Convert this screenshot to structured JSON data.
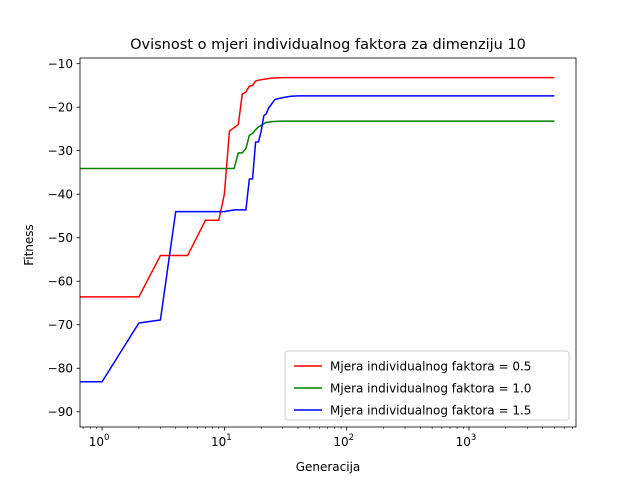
{
  "chart_data": {
    "type": "line",
    "title": "Ovisnost o mjeri individualnog faktora za dimenziju 10",
    "xlabel": "Generacija",
    "ylabel": "Fitness",
    "xscale": "log",
    "xlim": [
      0.66,
      7500
    ],
    "ylim": [
      -93.5,
      -8.7
    ],
    "xticks": [
      {
        "value": 1,
        "base": "10",
        "exp": "0"
      },
      {
        "value": 10,
        "base": "10",
        "exp": "1"
      },
      {
        "value": 100,
        "base": "10",
        "exp": "2"
      },
      {
        "value": 1000,
        "base": "10",
        "exp": "3"
      }
    ],
    "yticks": [
      {
        "value": -10,
        "label": "−10"
      },
      {
        "value": -20,
        "label": "−20"
      },
      {
        "value": -30,
        "label": "−30"
      },
      {
        "value": -40,
        "label": "−40"
      },
      {
        "value": -50,
        "label": "−50"
      },
      {
        "value": -60,
        "label": "−60"
      },
      {
        "value": -70,
        "label": "−70"
      },
      {
        "value": -80,
        "label": "−80"
      },
      {
        "value": -90,
        "label": "−90"
      }
    ],
    "legend_position": "lower-right",
    "grid": false,
    "series": [
      {
        "name": "Mjera individualnog faktora = 0.5",
        "color": "#ff0000",
        "x": [
          0.66,
          2,
          3,
          5,
          7,
          9,
          10,
          11,
          13,
          14,
          15,
          16,
          17,
          18,
          19,
          22,
          25,
          30,
          40,
          60,
          100,
          5000
        ],
        "y": [
          -63.6,
          -63.6,
          -54.1,
          -54.1,
          -46.0,
          -46.0,
          -40.0,
          -25.5,
          -24.0,
          -17.0,
          -16.5,
          -15.2,
          -15.0,
          -14.0,
          -13.8,
          -13.5,
          -13.3,
          -13.2,
          -13.2,
          -13.2,
          -13.2,
          -13.2
        ]
      },
      {
        "name": "Mjera individualnog faktora = 1.0",
        "color": "#008000",
        "x": [
          0.66,
          12,
          13,
          14,
          15,
          16,
          17,
          18,
          19,
          20,
          21,
          22,
          25,
          30,
          40,
          60,
          100,
          5000
        ],
        "y": [
          -34.1,
          -34.1,
          -30.5,
          -30.5,
          -29.5,
          -26.5,
          -26.0,
          -25.2,
          -24.5,
          -24.2,
          -23.8,
          -23.5,
          -23.3,
          -23.2,
          -23.2,
          -23.2,
          -23.2,
          -23.2
        ],
        "_": ""
      },
      {
        "name": "Mjera individualnog faktora = 1.5",
        "color": "#0000ff",
        "x": [
          0.66,
          1,
          2,
          3,
          4,
          10,
          12,
          15,
          16,
          17,
          18,
          19,
          20,
          21,
          22,
          23,
          24,
          25,
          26,
          28,
          30,
          35,
          40,
          60,
          100,
          5000
        ],
        "y": [
          -83.1,
          -83.1,
          -69.6,
          -68.9,
          -44.0,
          -44.0,
          -43.6,
          -43.6,
          -36.5,
          -36.5,
          -28.0,
          -28.0,
          -25.5,
          -22.0,
          -21.5,
          -20.2,
          -19.5,
          -18.8,
          -18.2,
          -18.0,
          -17.8,
          -17.5,
          -17.4,
          -17.4,
          -17.4,
          -17.4
        ]
      }
    ]
  }
}
